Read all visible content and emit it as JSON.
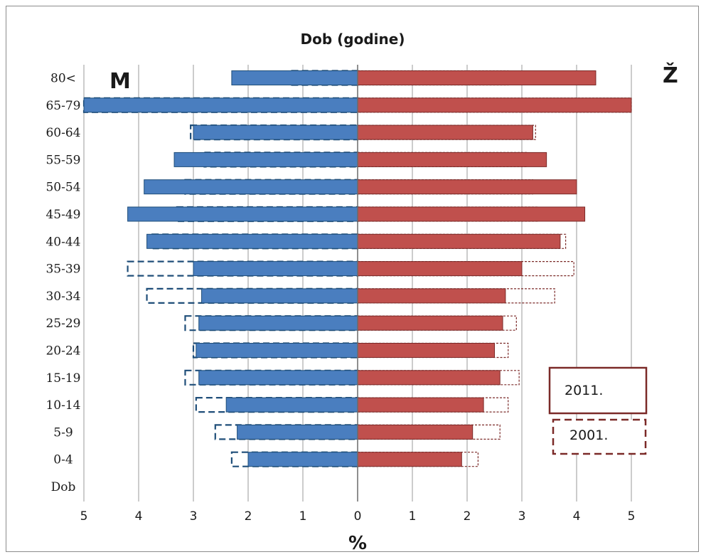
{
  "chart_data": {
    "type": "bar",
    "orientation": "horizontal",
    "subtype": "population-pyramid",
    "title": "Dob (godine)",
    "xlabel": "%",
    "ylabel": "",
    "xlim": [
      -5,
      5
    ],
    "x_ticks": [
      5,
      4,
      3,
      2,
      1,
      0,
      1,
      2,
      3,
      4,
      5
    ],
    "grid": true,
    "left_label": "M",
    "right_label": "Ž",
    "categories": [
      "Dob",
      "0-4",
      "5-9",
      "10-14",
      "15-19",
      "20-24",
      "25-29",
      "30-34",
      "35-39",
      "40-44",
      "45-49",
      "50-54",
      "55-59",
      "60-64",
      "65-79",
      "80<"
    ],
    "series": [
      {
        "name": "2011.",
        "sex": "M",
        "values": [
          0,
          2.0,
          2.2,
          2.4,
          2.9,
          2.95,
          2.9,
          2.85,
          3.0,
          3.85,
          4.2,
          3.9,
          3.35,
          3.0,
          5.0,
          2.3
        ]
      },
      {
        "name": "2001.",
        "sex": "M",
        "values": [
          0,
          2.3,
          2.6,
          2.95,
          3.15,
          3.0,
          3.15,
          3.85,
          4.2,
          3.75,
          3.3,
          3.15,
          2.8,
          3.05,
          5.0,
          1.2
        ]
      },
      {
        "name": "2011.",
        "sex": "Ž",
        "values": [
          0,
          1.9,
          2.1,
          2.3,
          2.6,
          2.5,
          2.65,
          2.7,
          3.0,
          3.7,
          4.15,
          4.0,
          3.45,
          3.2,
          5.0,
          4.35
        ]
      },
      {
        "name": "2001.",
        "sex": "Ž",
        "values": [
          0,
          2.2,
          2.6,
          2.75,
          2.95,
          2.75,
          2.9,
          3.6,
          3.95,
          3.8,
          3.3,
          3.2,
          3.1,
          3.25,
          5.0,
          2.75
        ]
      }
    ],
    "colors": {
      "male": "#4a7ebf",
      "female": "#c0504d",
      "male_outline": "#1f4e79",
      "female_outline": "#7b2a28",
      "grid": "#9a9a9a"
    },
    "legend": {
      "position": "bottom-right",
      "entries": [
        "2011.",
        "2001."
      ]
    }
  }
}
